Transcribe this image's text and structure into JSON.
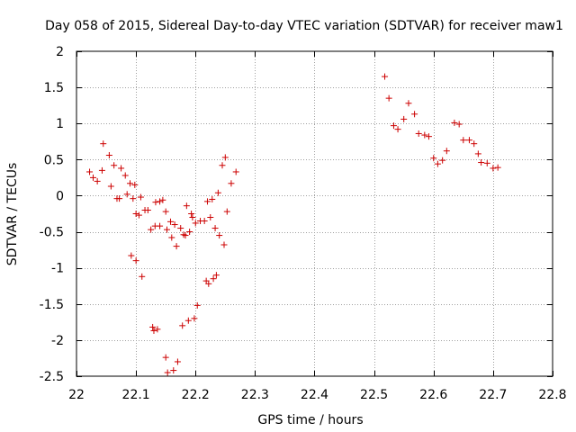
{
  "chart_data": {
    "type": "scatter",
    "title": "Day 058 of 2015, Sidereal Day-to-day VTEC variation (SDTVAR) for receiver maw1",
    "xlabel": "GPS time / hours",
    "ylabel": "SDTVAR / TECUs",
    "xlim": [
      22,
      22.8
    ],
    "ylim": [
      -2.5,
      2
    ],
    "x_ticks": [
      22,
      22.1,
      22.2,
      22.3,
      22.4,
      22.5,
      22.6,
      22.7,
      22.8
    ],
    "x_tick_labels": [
      "22",
      "22.1",
      "22.2",
      "22.3",
      "22.4",
      "22.5",
      "22.6",
      "22.7",
      "22.8"
    ],
    "y_ticks": [
      2,
      1.5,
      1,
      0.5,
      0,
      -0.5,
      -1,
      -1.5,
      -2,
      -2.5
    ],
    "y_tick_labels": [
      "2",
      "1.5",
      "1",
      "0.5",
      "0",
      "-0.5",
      "-1",
      "-1.5",
      "-2",
      "-2.5"
    ],
    "grid": true,
    "marker": "+",
    "marker_color": "#cc0000",
    "series": [
      {
        "name": "maw1",
        "points": [
          [
            22.022,
            0.33
          ],
          [
            22.028,
            0.25
          ],
          [
            22.035,
            0.2
          ],
          [
            22.043,
            0.35
          ],
          [
            22.045,
            0.72
          ],
          [
            22.055,
            0.56
          ],
          [
            22.058,
            0.13
          ],
          [
            22.063,
            0.42
          ],
          [
            22.068,
            -0.04
          ],
          [
            22.072,
            -0.04
          ],
          [
            22.075,
            0.38
          ],
          [
            22.082,
            0.28
          ],
          [
            22.085,
            0.02
          ],
          [
            22.09,
            0.17
          ],
          [
            22.092,
            -0.83
          ],
          [
            22.095,
            -0.04
          ],
          [
            22.098,
            0.15
          ],
          [
            22.1,
            -0.25
          ],
          [
            22.1,
            -0.9
          ],
          [
            22.105,
            -0.27
          ],
          [
            22.108,
            -0.02
          ],
          [
            22.11,
            -1.12
          ],
          [
            22.115,
            -0.2
          ],
          [
            22.12,
            -0.2
          ],
          [
            22.125,
            -0.47
          ],
          [
            22.128,
            -1.82
          ],
          [
            22.13,
            -1.87
          ],
          [
            22.132,
            -0.42
          ],
          [
            22.133,
            -0.09
          ],
          [
            22.136,
            -1.85
          ],
          [
            22.14,
            -0.42
          ],
          [
            22.14,
            -0.08
          ],
          [
            22.145,
            -0.06
          ],
          [
            22.15,
            -0.22
          ],
          [
            22.15,
            -2.24
          ],
          [
            22.152,
            -0.47
          ],
          [
            22.153,
            -2.45
          ],
          [
            22.158,
            -0.36
          ],
          [
            22.16,
            -0.58
          ],
          [
            22.163,
            -2.42
          ],
          [
            22.165,
            -0.4
          ],
          [
            22.168,
            -0.7
          ],
          [
            22.17,
            -2.3
          ],
          [
            22.175,
            -0.45
          ],
          [
            22.178,
            -1.8
          ],
          [
            22.18,
            -0.54
          ],
          [
            22.183,
            -0.55
          ],
          [
            22.185,
            -0.14
          ],
          [
            22.188,
            -1.73
          ],
          [
            22.19,
            -0.5
          ],
          [
            22.193,
            -0.25
          ],
          [
            22.195,
            -0.3
          ],
          [
            22.198,
            -1.7
          ],
          [
            22.2,
            -0.38
          ],
          [
            22.203,
            -1.52
          ],
          [
            22.208,
            -0.35
          ],
          [
            22.215,
            -0.35
          ],
          [
            22.218,
            -1.18
          ],
          [
            22.22,
            -0.08
          ],
          [
            22.222,
            -1.22
          ],
          [
            22.225,
            -0.3
          ],
          [
            22.228,
            -0.05
          ],
          [
            22.23,
            -1.15
          ],
          [
            22.233,
            -0.45
          ],
          [
            22.235,
            -1.1
          ],
          [
            22.238,
            0.04
          ],
          [
            22.24,
            -0.55
          ],
          [
            22.245,
            0.42
          ],
          [
            22.248,
            -0.68
          ],
          [
            22.25,
            0.53
          ],
          [
            22.253,
            -0.22
          ],
          [
            22.26,
            0.17
          ],
          [
            22.268,
            0.33
          ],
          [
            22.518,
            1.65
          ],
          [
            22.525,
            1.35
          ],
          [
            22.533,
            0.97
          ],
          [
            22.54,
            0.92
          ],
          [
            22.55,
            1.06
          ],
          [
            22.558,
            1.28
          ],
          [
            22.568,
            1.13
          ],
          [
            22.575,
            0.86
          ],
          [
            22.585,
            0.84
          ],
          [
            22.592,
            0.82
          ],
          [
            22.6,
            0.52
          ],
          [
            22.607,
            0.44
          ],
          [
            22.615,
            0.49
          ],
          [
            22.622,
            0.62
          ],
          [
            22.635,
            1.01
          ],
          [
            22.643,
            0.99
          ],
          [
            22.65,
            0.77
          ],
          [
            22.66,
            0.77
          ],
          [
            22.668,
            0.72
          ],
          [
            22.675,
            0.58
          ],
          [
            22.68,
            0.46
          ],
          [
            22.69,
            0.45
          ],
          [
            22.7,
            0.38
          ],
          [
            22.708,
            0.39
          ]
        ]
      }
    ]
  }
}
